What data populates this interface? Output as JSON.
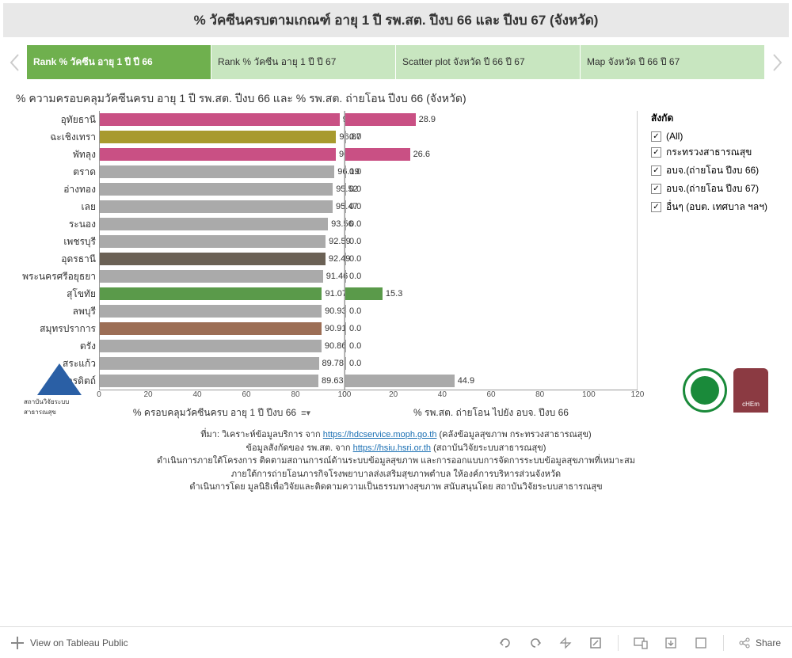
{
  "title": "% วัคซีนครบตามเกณฑ์ อายุ 1 ปี รพ.สต. ปีงบ 66 และ ปีงบ 67 (จังหวัด)",
  "tabs": [
    {
      "label": "Rank % วัคซีน อายุ 1 ปี ปี 66",
      "active": true
    },
    {
      "label": "Rank % วัคซีน อายุ 1 ปี ปี 67",
      "active": false
    },
    {
      "label": "Scatter plot จังหวัด ปี 66 ปี 67",
      "active": false
    },
    {
      "label": "Map จังหวัด ปี 66 ปี 67",
      "active": false
    }
  ],
  "subtitle": "% ความครอบคลุมวัคซีนครบ อายุ 1 ปี รพ.สต. ปีงบ 66 และ % รพ.สต. ถ่ายโอน ปีงบ 66 (จังหวัด)",
  "chart": {
    "rows": [
      {
        "label": "อุทัยธานี",
        "v1": 98.31,
        "v2": 28.9,
        "c1": "#c95084",
        "c2": "#c95084"
      },
      {
        "label": "ฉะเชิงเทรา",
        "v1": 96.87,
        "v2": 0.0,
        "c1": "#a89a2e",
        "c2": "#aaaaaa"
      },
      {
        "label": "พัทลุง",
        "v1": 96.75,
        "v2": 26.6,
        "c1": "#c95084",
        "c2": "#c95084"
      },
      {
        "label": "ตราด",
        "v1": 96.19,
        "v2": 0.0,
        "c1": "#aaaaaa",
        "c2": "#aaaaaa"
      },
      {
        "label": "อ่างทอง",
        "v1": 95.52,
        "v2": 0.0,
        "c1": "#aaaaaa",
        "c2": "#aaaaaa"
      },
      {
        "label": "เลย",
        "v1": 95.47,
        "v2": 0.0,
        "c1": "#aaaaaa",
        "c2": "#aaaaaa"
      },
      {
        "label": "ระนอง",
        "v1": 93.56,
        "v2": 0.0,
        "c1": "#aaaaaa",
        "c2": "#aaaaaa"
      },
      {
        "label": "เพชรบุรี",
        "v1": 92.59,
        "v2": 0.0,
        "c1": "#aaaaaa",
        "c2": "#aaaaaa"
      },
      {
        "label": "อุดรธานี",
        "v1": 92.49,
        "v2": 0.0,
        "c1": "#6b6155",
        "c2": "#aaaaaa"
      },
      {
        "label": "พระนครศรีอยุธยา",
        "v1": 91.46,
        "v2": 0.0,
        "c1": "#aaaaaa",
        "c2": "#aaaaaa"
      },
      {
        "label": "สุโขทัย",
        "v1": 91.07,
        "v2": 15.3,
        "c1": "#5a9a4a",
        "c2": "#5a9a4a"
      },
      {
        "label": "ลพบุรี",
        "v1": 90.93,
        "v2": 0.0,
        "c1": "#aaaaaa",
        "c2": "#aaaaaa"
      },
      {
        "label": "สมุทรปราการ",
        "v1": 90.91,
        "v2": 0.0,
        "c1": "#9c6e55",
        "c2": "#aaaaaa"
      },
      {
        "label": "ตรัง",
        "v1": 90.86,
        "v2": 0.0,
        "c1": "#aaaaaa",
        "c2": "#aaaaaa"
      },
      {
        "label": "สระแก้ว",
        "v1": 89.78,
        "v2": 0.0,
        "c1": "#aaaaaa",
        "c2": "#aaaaaa"
      },
      {
        "label": "อุตรดิตถ์",
        "v1": 89.63,
        "v2": 44.9,
        "c1": "#aaaaaa",
        "c2": "#aaaaaa"
      }
    ],
    "left_axis": {
      "label": "% ครอบคลุมวัคซีนครบ อายุ 1 ปี ปีงบ 66",
      "max": 100,
      "ticks": [
        0,
        20,
        40,
        60,
        80,
        100
      ]
    },
    "right_axis": {
      "label": "% รพ.สต. ถ่ายโอน ไปยัง อบจ. ปีงบ 66",
      "max": 120,
      "ticks": [
        0,
        20,
        40,
        60,
        80,
        100,
        120
      ]
    }
  },
  "legend": {
    "title": "สังกัด",
    "items": [
      "(All)",
      "กระทรวงสาธารณสุข",
      "อบจ.(ถ่ายโอน ปีงบ 66)",
      "อบจ.(ถ่ายโอน ปีงบ 67)",
      "อื่นๆ (อบต. เทศบาล ฯลฯ)"
    ]
  },
  "footer": {
    "line1_pre": "ที่มา: วิเคราะห์ข้อมูลบริการ จาก ",
    "link1": "https://hdcservice.moph.go.th",
    "line1_post": " (คลังข้อมูลสุขภาพ กระทรวงสาธารณสุข)",
    "line2_pre": "ข้อมูลสังกัดของ รพ.สต. จาก ",
    "link2": "https://hsiu.hsri.or.th",
    "line2_post": " (สถาบันวิจัยระบบสาธารณสุข)",
    "line3": "ดำเนินการภายใต้โครงการ ติดตามสถานการณ์ด้านระบบข้อมูลสุขภาพ และการออกแบบการจัดการระบบข้อมูลสุขภาพที่เหมาะสม",
    "line4": "ภายใต้การถ่ายโอนภารกิจโรงพยาบาลส่งเสริมสุขภาพตำบล ให้องค์การบริหารส่วนจังหวัด",
    "line5": "ดำเนินการโดย มูลนิธิเพื่อวิจัยและติดตามความเป็นธรรมทางสุขภาพ สนับสนุนโดย สถาบันวิจัยระบบสาธารณสุข"
  },
  "logo_left_text": "สถาบันวิจัยระบบสาธารณสุข",
  "bottombar": {
    "tableau": "View on Tableau Public",
    "share": "Share"
  }
}
